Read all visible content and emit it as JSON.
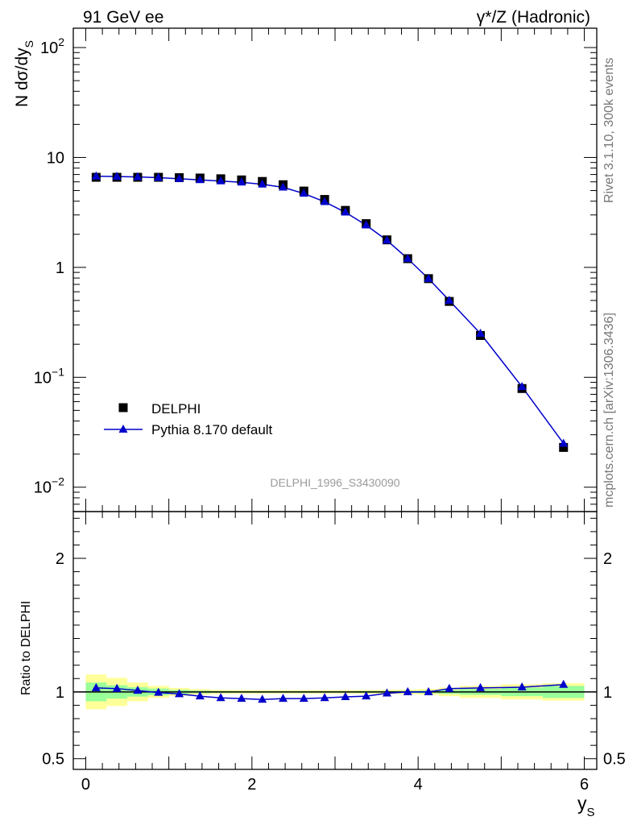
{
  "header": {
    "left_title": "91 GeV ee",
    "right_title": "γ*/Z (Hadronic)"
  },
  "side_labels": {
    "rivet": "Rivet 3.1.10,  300k events",
    "mcplots": "mcplots.cern.ch [arXiv:1306.3436]"
  },
  "chart_data": [
    {
      "type": "scatter",
      "ylabel": "N dσ/dy",
      "ylabel_sub": "S",
      "yscale": "log",
      "ylim": [
        0.006,
        150
      ],
      "xlim": [
        -0.15,
        6.15
      ],
      "watermark": "DELPHI_1996_S3430090",
      "y_tick_labels": [
        "10^-2",
        "10^-1",
        "1",
        "10",
        "10^2"
      ],
      "legend_position": "lower-left",
      "series": [
        {
          "name": "DELPHI",
          "marker": "square",
          "color": "#000000",
          "x": [
            0.125,
            0.375,
            0.625,
            0.875,
            1.125,
            1.375,
            1.625,
            1.875,
            2.125,
            2.375,
            2.625,
            2.875,
            3.125,
            3.375,
            3.625,
            3.875,
            4.125,
            4.375,
            4.75,
            5.25,
            5.75
          ],
          "y": [
            6.6,
            6.6,
            6.6,
            6.6,
            6.55,
            6.5,
            6.4,
            6.25,
            6.05,
            5.65,
            4.95,
            4.15,
            3.3,
            2.5,
            1.78,
            1.2,
            0.79,
            0.49,
            0.24,
            0.079,
            0.023
          ]
        },
        {
          "name": "Pythia 8.170 default",
          "marker": "triangle",
          "color": "#0000cc",
          "x": [
            0.125,
            0.375,
            0.625,
            0.875,
            1.125,
            1.375,
            1.625,
            1.875,
            2.125,
            2.375,
            2.625,
            2.875,
            3.125,
            3.375,
            3.625,
            3.875,
            4.125,
            4.375,
            4.75,
            5.25,
            5.75
          ],
          "y": [
            6.75,
            6.7,
            6.65,
            6.55,
            6.4,
            6.25,
            6.1,
            5.95,
            5.7,
            5.35,
            4.7,
            3.95,
            3.17,
            2.42,
            1.76,
            1.2,
            0.79,
            0.5,
            0.25,
            0.082,
            0.025
          ]
        }
      ]
    },
    {
      "type": "line",
      "ylabel": "Ratio to DELPHI",
      "xlabel": "y",
      "xlabel_sub": "S",
      "ylim": [
        0.42,
        2.35
      ],
      "xlim": [
        -0.15,
        6.15
      ],
      "x_tick_labels": [
        "0",
        "2",
        "4",
        "6"
      ],
      "y_tick_labels": [
        "0.5",
        "1",
        "2"
      ],
      "bands": {
        "edges": [
          0,
          0.25,
          0.5,
          0.75,
          1.0,
          1.25,
          1.5,
          1.75,
          2.0,
          2.25,
          2.5,
          2.75,
          3.0,
          3.25,
          3.5,
          3.75,
          4.0,
          4.25,
          4.5,
          5.0,
          5.5,
          6.0
        ],
        "stat_color": "#99ff99",
        "total_color": "#ffff99",
        "stat_low": [
          0.93,
          0.95,
          0.965,
          0.975,
          0.985,
          0.99,
          0.993,
          0.994,
          0.994,
          0.994,
          0.994,
          0.994,
          0.994,
          0.993,
          0.993,
          0.992,
          0.99,
          0.985,
          0.978,
          0.968,
          0.955
        ],
        "stat_high": [
          1.07,
          1.05,
          1.035,
          1.025,
          1.015,
          1.01,
          1.007,
          1.006,
          1.006,
          1.006,
          1.006,
          1.006,
          1.006,
          1.007,
          1.007,
          1.008,
          1.01,
          1.015,
          1.022,
          1.032,
          1.045
        ],
        "total_low": [
          0.87,
          0.895,
          0.93,
          0.955,
          0.97,
          0.98,
          0.985,
          0.986,
          0.987,
          0.987,
          0.987,
          0.987,
          0.987,
          0.986,
          0.985,
          0.983,
          0.978,
          0.968,
          0.955,
          0.943,
          0.935
        ],
        "total_high": [
          1.13,
          1.105,
          1.07,
          1.045,
          1.03,
          1.02,
          1.015,
          1.014,
          1.013,
          1.013,
          1.013,
          1.013,
          1.013,
          1.014,
          1.015,
          1.017,
          1.022,
          1.032,
          1.045,
          1.057,
          1.065
        ]
      },
      "series": [
        {
          "name": "Pythia 8.170 default",
          "marker": "triangle",
          "color": "#0000cc",
          "x": [
            0.125,
            0.375,
            0.625,
            0.875,
            1.125,
            1.375,
            1.625,
            1.875,
            2.125,
            2.375,
            2.625,
            2.875,
            3.125,
            3.375,
            3.625,
            3.875,
            4.125,
            4.375,
            4.75,
            5.25,
            5.75
          ],
          "y": [
            1.03,
            1.025,
            1.01,
            0.995,
            0.985,
            0.968,
            0.955,
            0.95,
            0.943,
            0.95,
            0.95,
            0.955,
            0.963,
            0.968,
            0.99,
            1.0,
            1.0,
            1.025,
            1.03,
            1.035,
            1.055
          ]
        }
      ]
    }
  ]
}
